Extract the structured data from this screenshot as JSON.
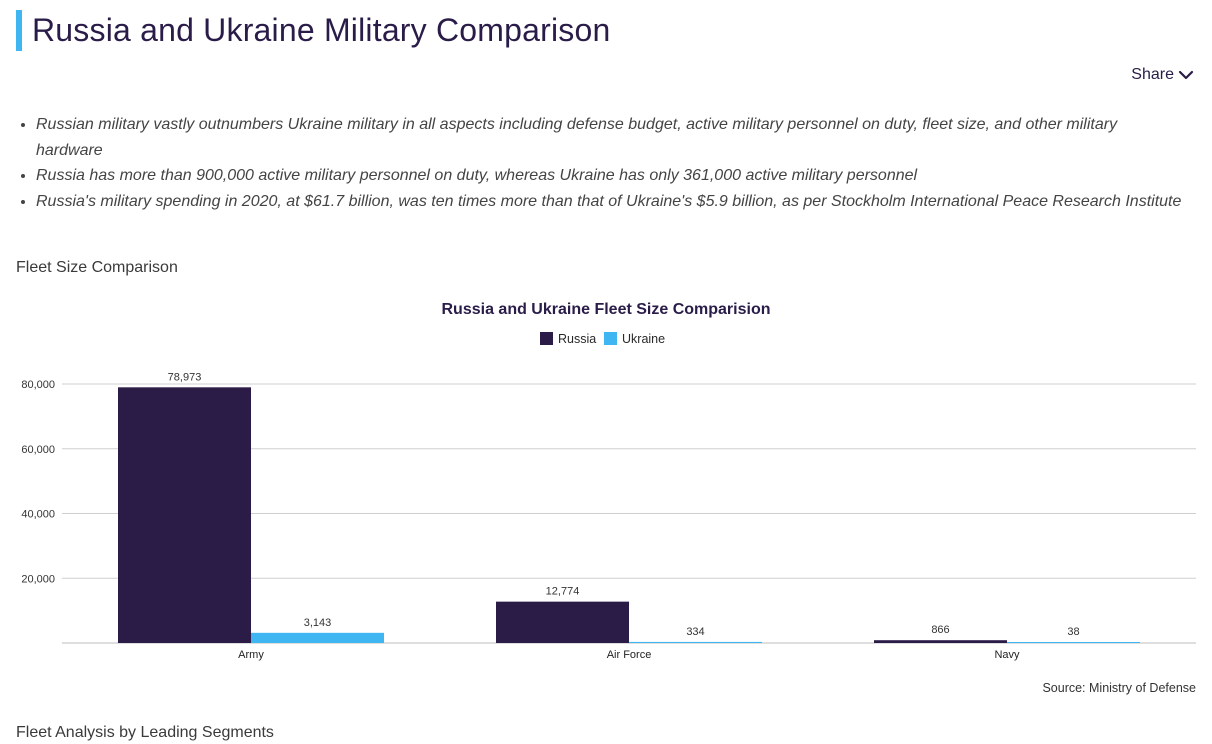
{
  "page": {
    "title": "Russia and Ukraine Military Comparison",
    "share_label": "Share",
    "bullets": [
      "Russian military vastly outnumbers Ukraine military in all aspects including defense budget, active military personnel on duty, fleet size, and other military hardware",
      "Russia has more than 900,000 active military personnel on duty, whereas Ukraine has only 361,000 active military personnel",
      "Russia's military spending in 2020, at $61.7 billion, was ten times more than that of Ukraine's $5.9 billion, as per Stockholm International Peace Research Institute"
    ],
    "section_fleet": "Fleet Size Comparison",
    "section_analysis": "Fleet Analysis by Leading Segments",
    "source": "Source: Ministry of Defense"
  },
  "colors": {
    "accent": "#3fb6f2",
    "russia": "#2a1b47",
    "ukraine": "#3fb6f2",
    "title": "#2a1c48"
  },
  "chart_data": {
    "type": "bar",
    "title": "Russia and Ukraine Fleet Size Comparision",
    "categories": [
      "Army",
      "Air Force",
      "Navy"
    ],
    "series": [
      {
        "name": "Russia",
        "values": [
          78973,
          12774,
          866
        ],
        "labels": [
          "78,973",
          "12,774",
          "866"
        ]
      },
      {
        "name": "Ukraine",
        "values": [
          3143,
          334,
          38
        ],
        "labels": [
          "3,143",
          "334",
          "38"
        ]
      }
    ],
    "yticks": [
      20000,
      40000,
      60000,
      80000
    ],
    "ytick_labels": [
      "20,000",
      "40,000",
      "60,000",
      "80,000"
    ],
    "ylim": [
      0,
      80000
    ],
    "xlabel": "",
    "ylabel": "",
    "legend": "top-center",
    "grid": true
  }
}
